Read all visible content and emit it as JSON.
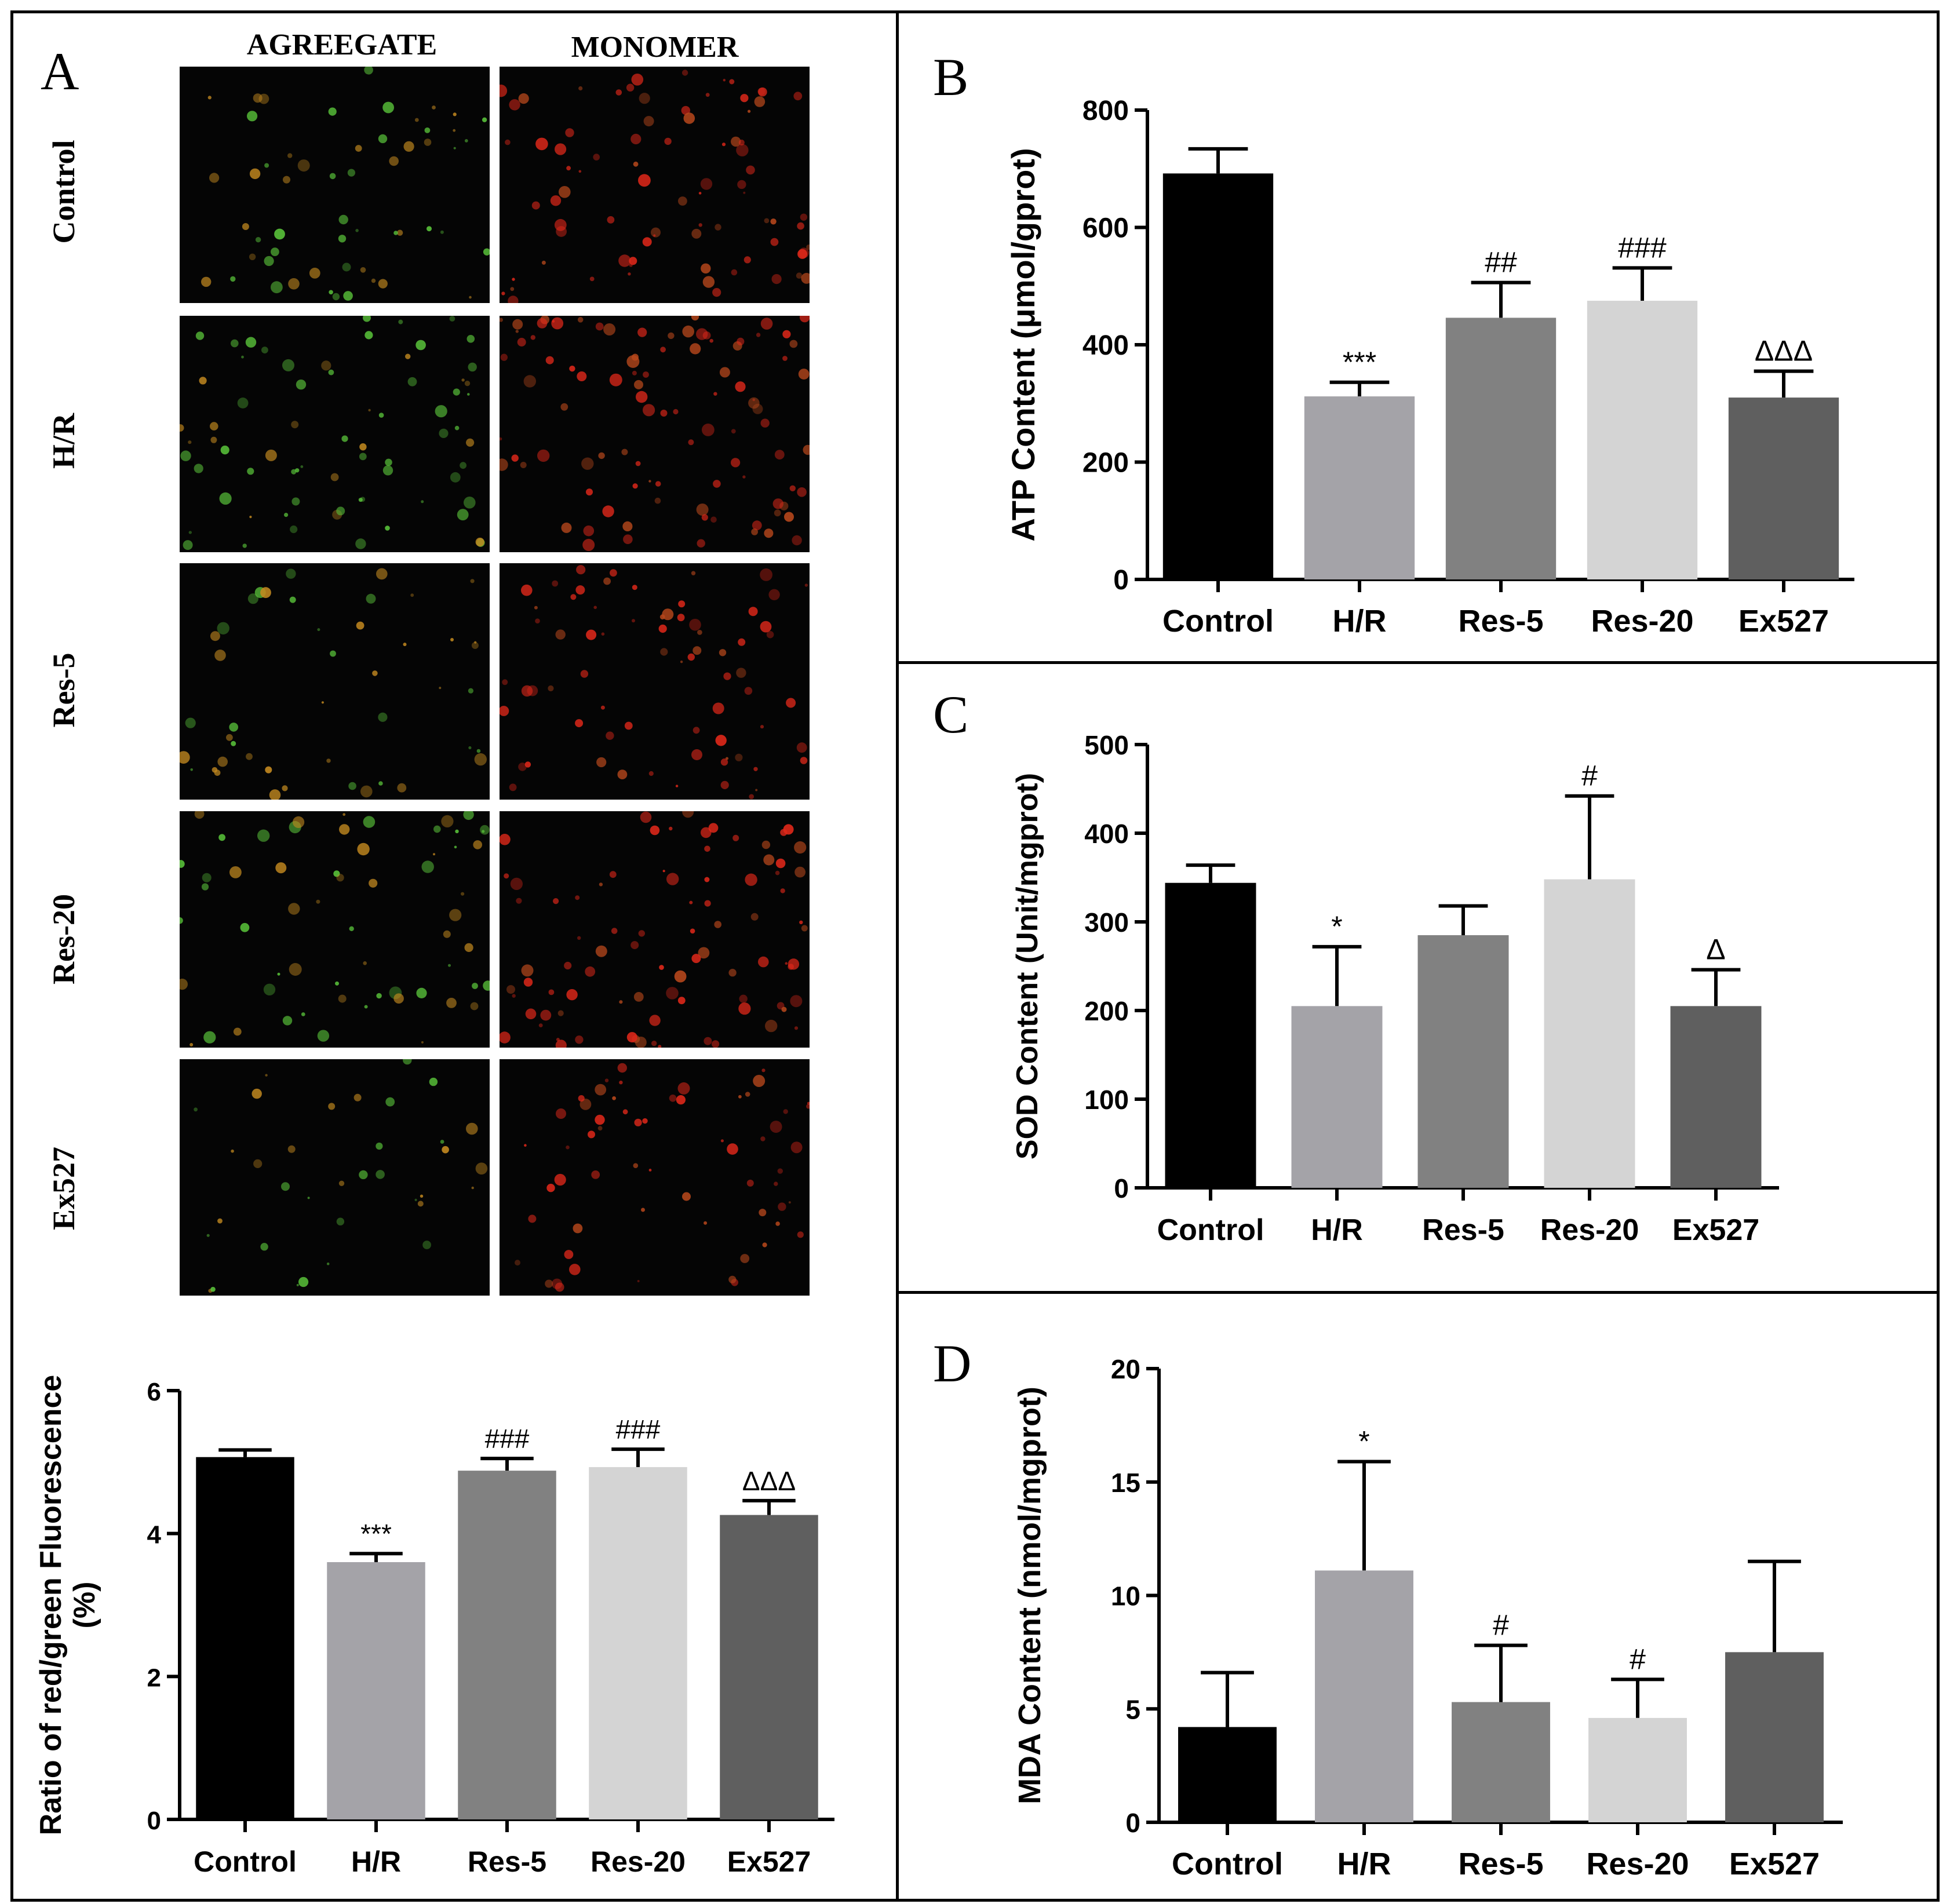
{
  "colors": {
    "control": "#000000",
    "hr": "#a4a3a8",
    "res5": "#818181",
    "res20": "#d4d4d4",
    "ex527": "#5f5f5f",
    "aggregate_tint": "#59c23a",
    "monomer_tint": "#e0281a"
  },
  "panel_a": {
    "letter": "A",
    "columns": [
      "AGREEGATE",
      "MONOMER"
    ],
    "rows": [
      "Control",
      "H/R",
      "Res-5",
      "Res-20",
      "Ex527"
    ]
  },
  "panel_b": {
    "letter": "B"
  },
  "panel_c": {
    "letter": "C"
  },
  "panel_d": {
    "letter": "D"
  },
  "chart_data": [
    {
      "id": "ratio",
      "type": "bar",
      "categories": [
        "Control",
        "H/R",
        "Res-5",
        "Res-20",
        "Ex527"
      ],
      "values": [
        5.07,
        3.6,
        4.88,
        4.93,
        4.26
      ],
      "errors": [
        0.1,
        0.12,
        0.17,
        0.25,
        0.2
      ],
      "annotations": [
        "",
        "***",
        "###",
        "###",
        "ΔΔΔ"
      ],
      "ylabel": "Ratio of red/green Fluorescence (%)",
      "ylabel_lines": [
        "Ratio of red/green Fluorescence",
        "(%)"
      ],
      "ylim": [
        0,
        6
      ],
      "yticks": [
        0,
        2,
        4,
        6
      ]
    },
    {
      "id": "atp",
      "type": "bar",
      "categories": [
        "Control",
        "H/R",
        "Res-5",
        "Res-20",
        "Ex527"
      ],
      "values": [
        692,
        312,
        446,
        475,
        310
      ],
      "errors": [
        42,
        24,
        60,
        56,
        45
      ],
      "annotations": [
        "",
        "***",
        "##",
        "###",
        "ΔΔΔ"
      ],
      "ylabel": "ATP Content (μmol/gprot)",
      "ylim": [
        0,
        800
      ],
      "yticks": [
        0,
        200,
        400,
        600,
        800
      ]
    },
    {
      "id": "sod",
      "type": "bar",
      "categories": [
        "Control",
        "H/R",
        "Res-5",
        "Res-20",
        "Ex527"
      ],
      "values": [
        344,
        205,
        285,
        348,
        205
      ],
      "errors": [
        20,
        67,
        33,
        94,
        41
      ],
      "annotations": [
        "",
        "*",
        "",
        "#",
        "Δ"
      ],
      "ylabel": "SOD Content (Unit/mgprot)",
      "ylim": [
        0,
        500
      ],
      "yticks": [
        0,
        100,
        200,
        300,
        400,
        500
      ]
    },
    {
      "id": "mda",
      "type": "bar",
      "categories": [
        "Control",
        "H/R",
        "Res-5",
        "Res-20",
        "Ex527"
      ],
      "values": [
        4.2,
        11.1,
        5.3,
        4.6,
        7.5
      ],
      "errors": [
        2.4,
        4.8,
        2.5,
        1.7,
        4.0
      ],
      "annotations": [
        "",
        "*",
        "#",
        "#",
        ""
      ],
      "ylabel": "MDA Content (nmol/mgprot)",
      "ylim": [
        0,
        20
      ],
      "yticks": [
        0,
        5,
        10,
        15,
        20
      ]
    }
  ]
}
